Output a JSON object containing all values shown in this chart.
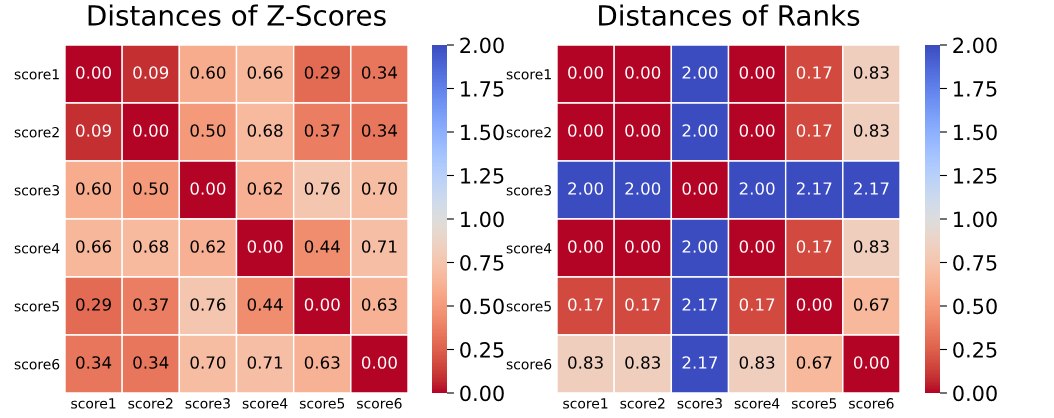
{
  "chart_data": [
    {
      "type": "heatmap",
      "title": "Distances of Z-Scores",
      "categories": [
        "score1",
        "score2",
        "score3",
        "score4",
        "score5",
        "score6"
      ],
      "y_categories": [
        "score1",
        "score2",
        "score3",
        "score4",
        "score5",
        "score6"
      ],
      "cells": [
        [
          0.0,
          0.09,
          0.6,
          0.66,
          0.29,
          0.34
        ],
        [
          0.09,
          0.0,
          0.5,
          0.68,
          0.37,
          0.34
        ],
        [
          0.6,
          0.5,
          0.0,
          0.62,
          0.76,
          0.7
        ],
        [
          0.66,
          0.68,
          0.62,
          0.0,
          0.44,
          0.71
        ],
        [
          0.29,
          0.37,
          0.76,
          0.44,
          0.0,
          0.63
        ],
        [
          0.34,
          0.34,
          0.7,
          0.71,
          0.63,
          0.0
        ]
      ],
      "cell_labels": [
        [
          "0.00",
          "0.09",
          "0.60",
          "0.66",
          "0.29",
          "0.34"
        ],
        [
          "0.09",
          "0.00",
          "0.50",
          "0.68",
          "0.37",
          "0.34"
        ],
        [
          "0.60",
          "0.50",
          "0.00",
          "0.62",
          "0.76",
          "0.70"
        ],
        [
          "0.66",
          "0.68",
          "0.62",
          "0.00",
          "0.44",
          "0.71"
        ],
        [
          "0.29",
          "0.37",
          "0.76",
          "0.44",
          "0.00",
          "0.63"
        ],
        [
          "0.34",
          "0.34",
          "0.70",
          "0.71",
          "0.63",
          "0.00"
        ]
      ],
      "data_labels": true,
      "clim": [
        0,
        2
      ],
      "cticks": [
        {
          "value": 0,
          "label": "0.00"
        },
        {
          "value": 0.25,
          "label": "0.25"
        },
        {
          "value": 0.5,
          "label": "0.50"
        },
        {
          "value": 0.75,
          "label": "0.75"
        },
        {
          "value": 1,
          "label": "1.00"
        },
        {
          "value": 1.25,
          "label": "1.25"
        },
        {
          "value": 1.5,
          "label": "1.50"
        },
        {
          "value": 1.75,
          "label": "1.75"
        },
        {
          "value": 2,
          "label": "2.00"
        }
      ]
    },
    {
      "type": "heatmap",
      "title": "Distances of Ranks",
      "categories": [
        "score1",
        "score2",
        "score3",
        "score4",
        "score5",
        "score6"
      ],
      "y_categories": [
        "score1",
        "score2",
        "score3",
        "score4",
        "score5",
        "score6"
      ],
      "cells": [
        [
          0.0,
          0.0,
          2.0,
          0.0,
          0.17,
          0.83
        ],
        [
          0.0,
          0.0,
          2.0,
          0.0,
          0.17,
          0.83
        ],
        [
          2.0,
          2.0,
          0.0,
          2.0,
          2.17,
          2.17
        ],
        [
          0.0,
          0.0,
          2.0,
          0.0,
          0.17,
          0.83
        ],
        [
          0.17,
          0.17,
          2.17,
          0.17,
          0.0,
          0.67
        ],
        [
          0.83,
          0.83,
          2.17,
          0.83,
          0.67,
          0.0
        ]
      ],
      "cell_labels": [
        [
          "0.00",
          "0.00",
          "2.00",
          "0.00",
          "0.17",
          "0.83"
        ],
        [
          "0.00",
          "0.00",
          "2.00",
          "0.00",
          "0.17",
          "0.83"
        ],
        [
          "2.00",
          "2.00",
          "0.00",
          "2.00",
          "2.17",
          "2.17"
        ],
        [
          "0.00",
          "0.00",
          "2.00",
          "0.00",
          "0.17",
          "0.83"
        ],
        [
          "0.17",
          "0.17",
          "2.17",
          "0.17",
          "0.00",
          "0.67"
        ],
        [
          "0.83",
          "0.83",
          "2.17",
          "0.83",
          "0.67",
          "0.00"
        ]
      ],
      "data_labels": true,
      "clim": [
        0,
        2
      ],
      "cticks": [
        {
          "value": 0,
          "label": "0.00"
        },
        {
          "value": 0.25,
          "label": "0.25"
        },
        {
          "value": 0.5,
          "label": "0.50"
        },
        {
          "value": 0.75,
          "label": "0.75"
        },
        {
          "value": 1,
          "label": "1.00"
        },
        {
          "value": 1.25,
          "label": "1.25"
        },
        {
          "value": 1.5,
          "label": "1.50"
        },
        {
          "value": 1.75,
          "label": "1.75"
        },
        {
          "value": 2,
          "label": "2.00"
        }
      ]
    }
  ]
}
